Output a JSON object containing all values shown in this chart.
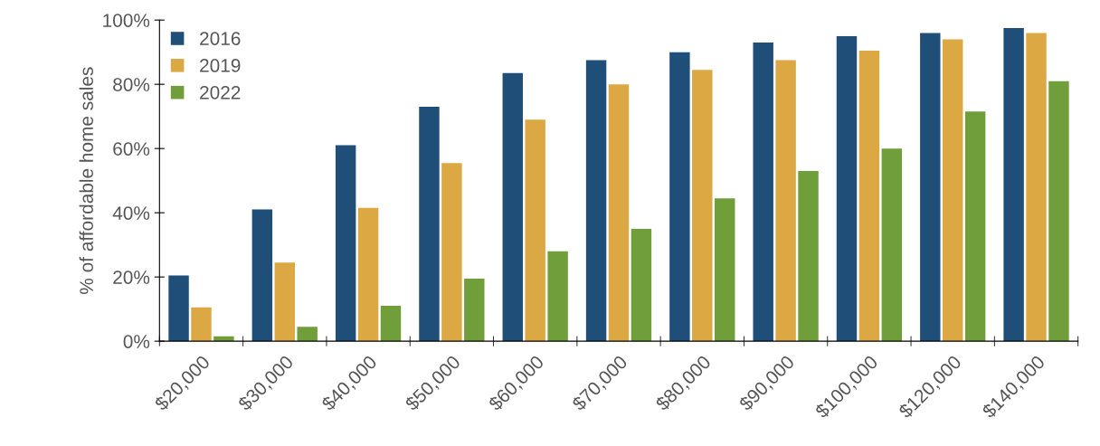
{
  "chart_data": {
    "type": "bar",
    "ylabel": "% of affordable home sales",
    "categories": [
      "$20,000",
      "$30,000",
      "$40,000",
      "$50,000",
      "$60,000",
      "$70,000",
      "$80,000",
      "$90,000",
      "$100,000",
      "$120,000",
      "$140,000"
    ],
    "series": [
      {
        "name": "2016",
        "color": "#1f4e79",
        "values": [
          20.5,
          41,
          61,
          73,
          83.5,
          87.5,
          90,
          93,
          95,
          96,
          97.5
        ]
      },
      {
        "name": "2019",
        "color": "#dba844",
        "values": [
          10.5,
          24.5,
          41.5,
          55.5,
          69,
          80,
          84.5,
          87.5,
          90.5,
          94,
          96
        ]
      },
      {
        "name": "2022",
        "color": "#6f9e3a",
        "values": [
          1.5,
          4.5,
          11,
          19.5,
          28,
          35,
          44.5,
          53,
          60,
          71.5,
          81
        ]
      }
    ],
    "ylim": [
      0,
      100
    ],
    "yticks": [
      {
        "value": 0,
        "label": "0%"
      },
      {
        "value": 20,
        "label": "20%"
      },
      {
        "value": 40,
        "label": "40%"
      },
      {
        "value": 60,
        "label": "60%"
      },
      {
        "value": 80,
        "label": "80%"
      },
      {
        "value": 100,
        "label": "100%"
      }
    ],
    "legend": "top left",
    "grid": false
  }
}
